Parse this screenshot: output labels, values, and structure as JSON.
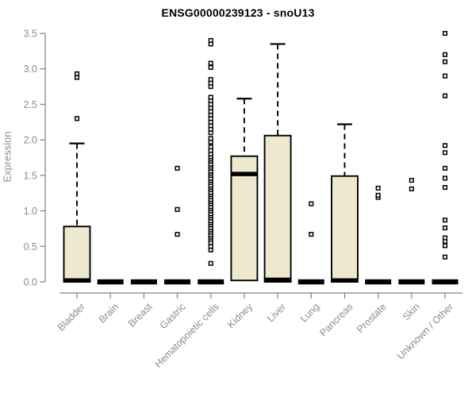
{
  "chart_data": {
    "type": "boxplot",
    "title": "ENSG00000239123 - snoU13",
    "xlabel": "",
    "ylabel": "Expression",
    "ylim": [
      0,
      3.5
    ],
    "yticks": [
      0.0,
      0.5,
      1.0,
      1.5,
      2.0,
      2.5,
      3.0,
      3.5
    ],
    "grid": false,
    "legend": "none",
    "categories": [
      "Bladder",
      "Brain",
      "Breast",
      "Gastric",
      "Hematopoietic cells",
      "Kidney",
      "Liver",
      "Lung",
      "Pancreas",
      "Prostate",
      "Skin",
      "Unknown / Other"
    ],
    "series": [
      {
        "name": "Bladder",
        "q1": 0,
        "median": 0.02,
        "q3": 0.78,
        "whisker_low": 0,
        "whisker_high": 1.95,
        "outliers": [
          2.3,
          2.88,
          2.93
        ]
      },
      {
        "name": "Brain",
        "q1": 0,
        "median": 0,
        "q3": 0,
        "whisker_low": 0,
        "whisker_high": 0,
        "outliers": []
      },
      {
        "name": "Breast",
        "q1": 0,
        "median": 0,
        "q3": 0,
        "whisker_low": 0,
        "whisker_high": 0,
        "outliers": []
      },
      {
        "name": "Gastric",
        "q1": 0,
        "median": 0,
        "q3": 0,
        "whisker_low": 0,
        "whisker_high": 0,
        "outliers": [
          0.67,
          1.02,
          1.6
        ]
      },
      {
        "name": "Hematopoietic cells",
        "q1": 0,
        "median": 0,
        "q3": 0,
        "whisker_low": 0,
        "whisker_high": 0,
        "outliers": [
          0.26,
          0.45,
          0.5,
          0.55,
          0.6,
          0.63,
          0.66,
          0.7,
          0.73,
          0.76,
          0.8,
          0.83,
          0.86,
          0.9,
          0.93,
          0.96,
          1.0,
          1.03,
          1.06,
          1.1,
          1.13,
          1.16,
          1.2,
          1.23,
          1.26,
          1.3,
          1.33,
          1.36,
          1.4,
          1.43,
          1.46,
          1.5,
          1.53,
          1.56,
          1.6,
          1.63,
          1.66,
          1.7,
          1.73,
          1.76,
          1.8,
          1.85,
          1.9,
          1.97,
          2.02,
          2.1,
          2.15,
          2.2,
          2.25,
          2.3,
          2.35,
          2.4,
          2.45,
          2.5,
          2.55,
          2.6,
          2.75,
          2.8,
          2.85,
          3.02,
          3.08,
          3.35,
          3.4
        ]
      },
      {
        "name": "Kidney",
        "q1": 0.02,
        "median": 1.52,
        "q3": 1.77,
        "whisker_low": 0.02,
        "whisker_high": 2.58,
        "outliers": []
      },
      {
        "name": "Liver",
        "q1": 0,
        "median": 0.03,
        "q3": 2.06,
        "whisker_low": 0,
        "whisker_high": 3.35,
        "outliers": []
      },
      {
        "name": "Lung",
        "q1": 0,
        "median": 0,
        "q3": 0,
        "whisker_low": 0,
        "whisker_high": 0,
        "outliers": [
          0.67,
          1.1
        ]
      },
      {
        "name": "Pancreas",
        "q1": 0,
        "median": 0.02,
        "q3": 1.49,
        "whisker_low": 0,
        "whisker_high": 2.22,
        "outliers": []
      },
      {
        "name": "Prostate",
        "q1": 0,
        "median": 0,
        "q3": 0,
        "whisker_low": 0,
        "whisker_high": 0,
        "outliers": [
          1.19,
          1.22,
          1.32
        ]
      },
      {
        "name": "Skin",
        "q1": 0,
        "median": 0,
        "q3": 0,
        "whisker_low": 0,
        "whisker_high": 0,
        "outliers": [
          1.31,
          1.43
        ]
      },
      {
        "name": "Unknown / Other",
        "q1": 0,
        "median": 0,
        "q3": 0,
        "whisker_low": 0,
        "whisker_high": 0,
        "outliers": [
          0.35,
          0.51,
          0.57,
          0.62,
          0.76,
          0.87,
          1.33,
          1.46,
          1.6,
          1.82,
          1.92,
          2.62,
          2.9,
          3.1,
          3.2,
          3.5
        ]
      }
    ],
    "colors": {
      "box_fill": "#ede8ce",
      "box_stroke": "#000000",
      "median": "#000000",
      "outlier_stroke": "#000000",
      "axis": "#888888",
      "tick_label": "#8c8c8c",
      "title": "#000000",
      "background": "#ffffff"
    }
  }
}
